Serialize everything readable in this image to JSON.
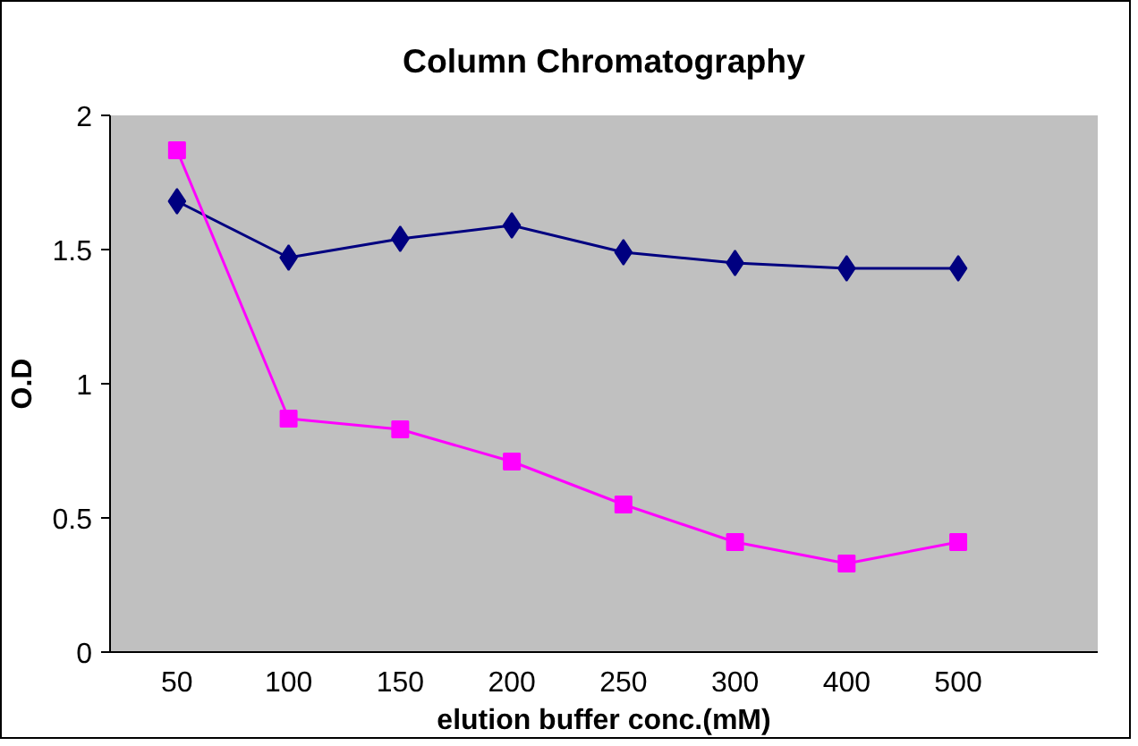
{
  "chart_data": {
    "type": "line",
    "title": "Column Chromatography",
    "xlabel": "elution buffer conc.(mM)",
    "ylabel": "O.D",
    "categories": [
      "50",
      "100",
      "150",
      "200",
      "250",
      "300",
      "400",
      "500"
    ],
    "series": [
      {
        "color": "#000080",
        "marker": "diamond",
        "values": [
          1.68,
          1.47,
          1.54,
          1.59,
          1.49,
          1.45,
          1.43,
          1.43
        ]
      },
      {
        "color": "#ff00ff",
        "marker": "square",
        "values": [
          1.87,
          0.87,
          0.83,
          0.71,
          0.55,
          0.41,
          0.33,
          0.41
        ]
      }
    ],
    "ylim": [
      0,
      2
    ],
    "yticks": [
      0,
      0.5,
      1,
      1.5,
      2
    ],
    "grid": false
  }
}
